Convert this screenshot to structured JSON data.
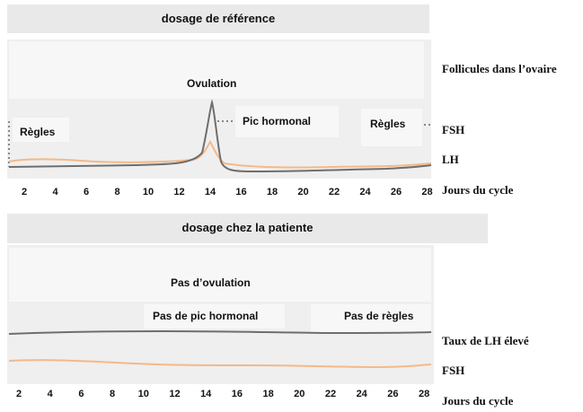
{
  "reference": {
    "title": "dosage de référence",
    "ovulation": "Ovulation",
    "peak": "Pic hormonal",
    "regles_left": "Règles",
    "regles_right": "Règles",
    "side_follicles": "Follicules dans l’ovaire",
    "side_fsh": "FSH",
    "side_lh": "LH",
    "side_days": "Jours du cycle",
    "ticks": [
      "2",
      "4",
      "6",
      "8",
      "10",
      "12",
      "14",
      "16",
      "18",
      "20",
      "22",
      "24",
      "26",
      "28"
    ]
  },
  "patient": {
    "title": "dosage chez  la patiente",
    "no_ovulation": "Pas d’ovulation",
    "no_peak": "Pas de pic hormonal",
    "no_regles": "Pas de règles",
    "side_lh_high": "Taux de LH élevé",
    "side_fsh": "FSH",
    "side_days": "Jours du cycle",
    "ticks": [
      "2",
      "4",
      "6",
      "8",
      "10",
      "12",
      "14",
      "16",
      "18",
      "20",
      "22",
      "24",
      "26",
      "28"
    ]
  },
  "colors": {
    "dark_curve": "#6e6e6e",
    "light_curve": "#f3b98a",
    "panel": "#efefef",
    "dots": "#888888"
  }
}
